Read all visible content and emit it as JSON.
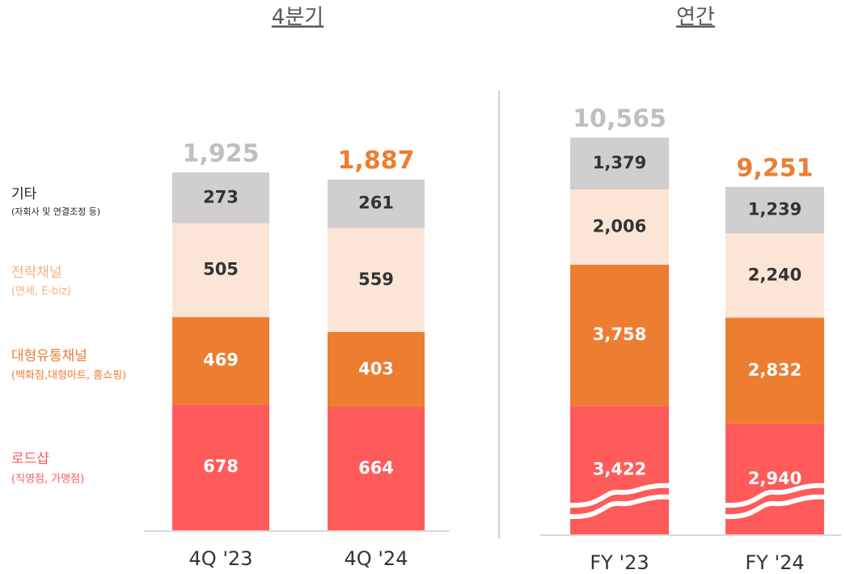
{
  "chart_data": [
    {
      "type": "stacked-bar",
      "title": "4분기",
      "categories": [
        "4Q '23",
        "4Q '24"
      ],
      "series": [
        {
          "name": "로드샵",
          "note": "(직영점, 가맹점)",
          "color": "#ff5b5b",
          "values": [
            678,
            664
          ]
        },
        {
          "name": "대형유통채널",
          "note": "(백화점,대형마트, 홈쇼핑)",
          "color": "#ed7d31",
          "values": [
            469,
            403
          ]
        },
        {
          "name": "전략채널",
          "note": "(면세, E-biz)",
          "color": "#fbe5d6",
          "values": [
            505,
            559
          ]
        },
        {
          "name": "기타",
          "note": "(자회사 및 연결조정 등)",
          "color": "#d0cece",
          "values": [
            273,
            261
          ]
        }
      ],
      "totals": [
        1925,
        1887
      ],
      "totals_labels": [
        "1,925",
        "1,887"
      ],
      "totals_colors": [
        "#bfbfbf",
        "#ed7d31"
      ]
    },
    {
      "type": "stacked-bar",
      "title": "연간",
      "categories": [
        "FY '23",
        "FY '24"
      ],
      "series": [
        {
          "color": "#ff5b5b",
          "values": [
            3422,
            2940
          ],
          "value_labels": [
            "3,422",
            "2,940"
          ]
        },
        {
          "color": "#ed7d31",
          "values": [
            3758,
            2832
          ],
          "value_labels": [
            "3,758",
            "2,832"
          ]
        },
        {
          "color": "#fbe5d6",
          "values": [
            2006,
            2240
          ],
          "value_labels": [
            "2,006",
            "2,240"
          ]
        },
        {
          "color": "#d0cece",
          "values": [
            1379,
            1239
          ],
          "value_labels": [
            "1,379",
            "1,239"
          ]
        }
      ],
      "totals": [
        10565,
        9251
      ],
      "totals_labels": [
        "10,565",
        "9,251"
      ],
      "totals_colors": [
        "#bfbfbf",
        "#ed7d31"
      ],
      "axis_break": true
    }
  ]
}
